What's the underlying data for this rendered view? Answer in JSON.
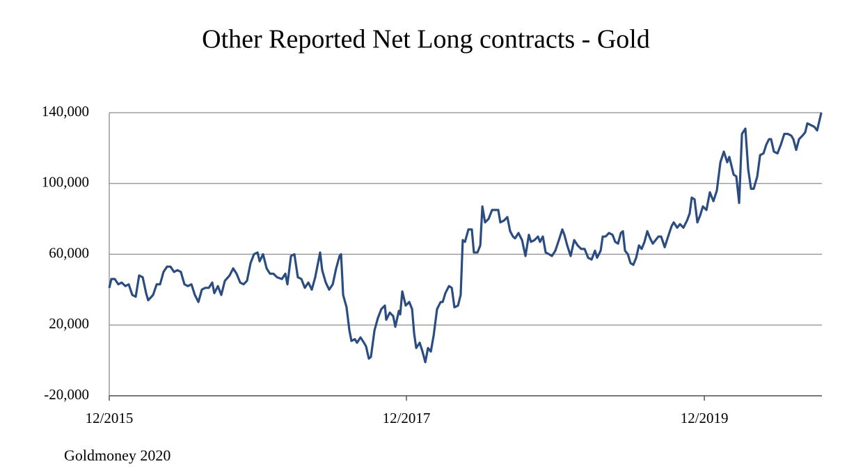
{
  "chart_data": {
    "type": "line",
    "title": "Other Reported Net Long contracts - Gold",
    "source": "Goldmoney 2020",
    "xlim": [
      2015.92,
      2020.716
    ],
    "xticks": [
      {
        "value": 2015.92,
        "label": "12/2015"
      },
      {
        "value": 2017.92,
        "label": "12/2017"
      },
      {
        "value": 2019.925,
        "label": "12/2019"
      }
    ],
    "ylim": [
      -20000,
      140000
    ],
    "yticks": [
      {
        "value": -20000,
        "label": "-20,000"
      },
      {
        "value": 20000,
        "label": "20,000"
      },
      {
        "value": 60000,
        "label": "60,000"
      },
      {
        "value": 100000,
        "label": "100,000"
      },
      {
        "value": 140000,
        "label": "140,000"
      }
    ],
    "grid": true,
    "series": [
      {
        "name": "Other Reported Net Long",
        "color": "#2b4c80",
        "x": [
          2015.92,
          2015.934,
          2015.957,
          2015.981,
          2016.004,
          2016.028,
          2016.051,
          2016.075,
          2016.098,
          2016.121,
          2016.145,
          2016.168,
          2016.182,
          2016.215,
          2016.239,
          2016.262,
          2016.285,
          2016.309,
          2016.332,
          2016.356,
          2016.379,
          2016.402,
          2016.426,
          2016.449,
          2016.473,
          2016.496,
          2016.52,
          2016.543,
          2016.566,
          2016.59,
          2016.613,
          2016.627,
          2016.651,
          2016.674,
          2016.698,
          2016.73,
          2016.754,
          2016.777,
          2016.801,
          2016.824,
          2016.847,
          2016.871,
          2016.894,
          2016.918,
          2016.932,
          2016.955,
          2016.979,
          2017.002,
          2017.025,
          2017.049,
          2017.082,
          2017.105,
          2017.119,
          2017.143,
          2017.166,
          2017.189,
          2017.213,
          2017.236,
          2017.26,
          2017.283,
          2017.306,
          2017.339,
          2017.353,
          2017.377,
          2017.4,
          2017.424,
          2017.447,
          2017.47,
          2017.48,
          2017.494,
          2017.517,
          2017.536,
          2017.55,
          2017.573,
          2017.587,
          2017.611,
          2017.634,
          2017.648,
          2017.667,
          2017.681,
          2017.705,
          2017.728,
          2017.751,
          2017.775,
          2017.784,
          2017.808,
          2017.831,
          2017.845,
          2017.869,
          2017.878,
          2017.892,
          2017.915,
          2017.939,
          2017.958,
          2017.972,
          2017.986,
          2018.009,
          2018.028,
          2018.047,
          2018.065,
          2018.084,
          2018.103,
          2018.126,
          2018.15,
          2018.164,
          2018.182,
          2018.206,
          2018.225,
          2018.243,
          2018.267,
          2018.285,
          2018.299,
          2018.314,
          2018.337,
          2018.36,
          2018.374,
          2018.398,
          2018.417,
          2018.431,
          2018.449,
          2018.473,
          2018.496,
          2018.52,
          2018.538,
          2018.552,
          2018.576,
          2018.599,
          2018.618,
          2018.637,
          2018.651,
          2018.674,
          2018.698,
          2018.721,
          2018.744,
          2018.758,
          2018.782,
          2018.805,
          2018.819,
          2018.838,
          2018.857,
          2018.88,
          2018.899,
          2018.922,
          2018.946,
          2018.969,
          2018.983,
          2019.002,
          2019.025,
          2019.049,
          2019.072,
          2019.096,
          2019.119,
          2019.143,
          2019.166,
          2019.189,
          2019.203,
          2019.227,
          2019.241,
          2019.26,
          2019.283,
          2019.307,
          2019.325,
          2019.344,
          2019.363,
          2019.377,
          2019.391,
          2019.41,
          2019.428,
          2019.447,
          2019.466,
          2019.485,
          2019.503,
          2019.522,
          2019.541,
          2019.56,
          2019.578,
          2019.597,
          2019.616,
          2019.634,
          2019.658,
          2019.681,
          2019.705,
          2019.719,
          2019.742,
          2019.761,
          2019.784,
          2019.808,
          2019.826,
          2019.84,
          2019.859,
          2019.878,
          2019.897,
          2019.915,
          2019.939,
          2019.962,
          2019.986,
          2020.009,
          2020.033,
          2020.056,
          2020.079,
          2020.093,
          2020.122,
          2020.14,
          2020.159,
          2020.178,
          2020.201,
          2020.22,
          2020.239,
          2020.257,
          2020.281,
          2020.3,
          2020.323,
          2020.342,
          2020.36,
          2020.374,
          2020.393,
          2020.417,
          2020.44,
          2020.463,
          2020.487,
          2020.51,
          2020.524,
          2020.543,
          2020.562,
          2020.585,
          2020.604,
          2020.618,
          2020.641,
          2020.665,
          2020.684,
          2020.712
        ],
        "values": [
          41000,
          46000,
          46000,
          43000,
          44000,
          42000,
          43000,
          37000,
          36000,
          48000,
          47000,
          38000,
          34000,
          37000,
          43000,
          43000,
          50000,
          53000,
          53000,
          50000,
          51000,
          50000,
          43000,
          42000,
          43000,
          37000,
          33000,
          40000,
          41000,
          41000,
          44000,
          38000,
          42000,
          37000,
          45000,
          48000,
          52000,
          49000,
          44000,
          43000,
          45000,
          55000,
          60000,
          61000,
          56000,
          60000,
          52000,
          49000,
          49000,
          47000,
          46000,
          49000,
          43000,
          59000,
          60000,
          47000,
          46000,
          41000,
          44000,
          40000,
          47000,
          61000,
          51000,
          44000,
          40000,
          43000,
          52000,
          59000,
          60000,
          37000,
          30000,
          17000,
          11000,
          12000,
          10000,
          13000,
          10000,
          8000,
          1000,
          2000,
          17000,
          24000,
          29000,
          31000,
          23000,
          27000,
          25000,
          19000,
          28000,
          26000,
          39000,
          31000,
          33000,
          29000,
          15000,
          7000,
          10000,
          5000,
          -1000,
          7000,
          5000,
          14000,
          29000,
          33000,
          33000,
          38000,
          42000,
          41000,
          30000,
          31000,
          37000,
          68000,
          67000,
          74000,
          74000,
          61000,
          61000,
          65000,
          87000,
          78000,
          80000,
          85000,
          85000,
          85000,
          78000,
          79000,
          81000,
          73000,
          70000,
          69000,
          72000,
          68000,
          59000,
          71000,
          67000,
          68000,
          70000,
          67000,
          70000,
          61000,
          60000,
          59000,
          62000,
          68000,
          74000,
          71000,
          65000,
          59000,
          68000,
          65000,
          63000,
          63000,
          58000,
          57000,
          62000,
          58000,
          62000,
          70000,
          70000,
          72000,
          71000,
          67000,
          66000,
          72000,
          73000,
          62000,
          60000,
          55000,
          54000,
          58000,
          65000,
          63000,
          67000,
          73000,
          69000,
          66000,
          68000,
          70000,
          70000,
          64000,
          70000,
          76000,
          78000,
          75000,
          77000,
          75000,
          79000,
          83000,
          92000,
          91000,
          78000,
          82000,
          87000,
          85000,
          95000,
          90000,
          96000,
          112000,
          118000,
          112000,
          115000,
          105000,
          104000,
          89000,
          128000,
          131000,
          108000,
          97000,
          97000,
          104000,
          116000,
          117000,
          122000,
          125000,
          125000,
          118000,
          117000,
          122000,
          128000,
          128000,
          127000,
          125000,
          119000,
          125000,
          127000,
          129000,
          134000,
          133000,
          132000,
          130000,
          140000
        ]
      }
    ]
  }
}
